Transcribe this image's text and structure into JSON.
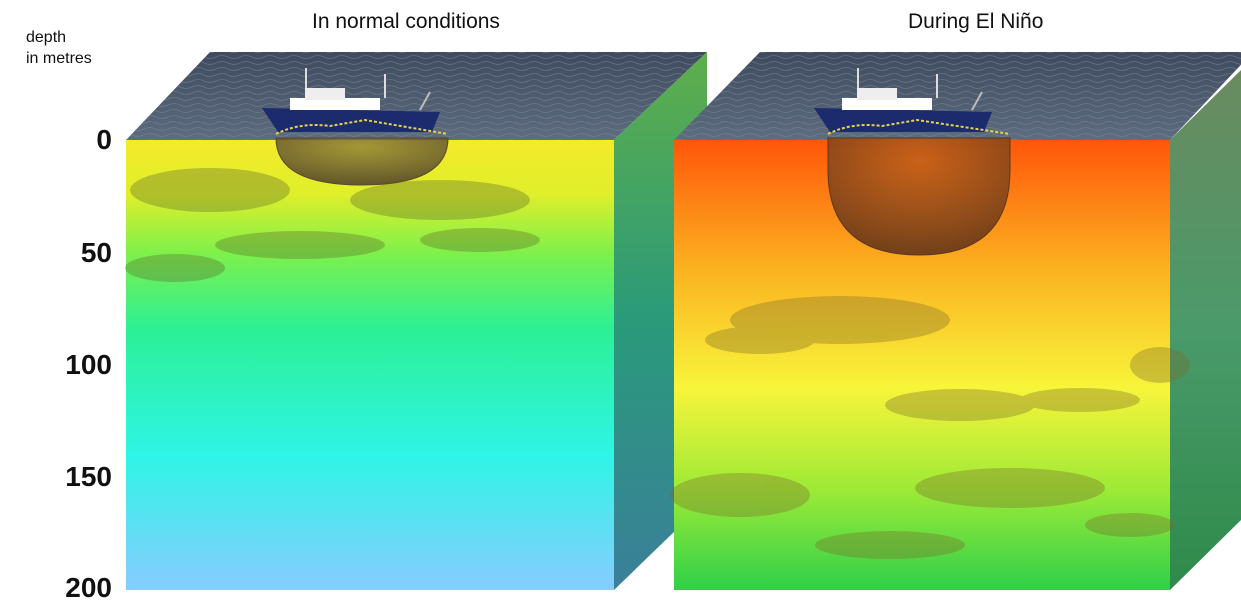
{
  "panels": {
    "left_title": "In normal conditions",
    "right_title": "During El Niño"
  },
  "axis": {
    "label_line1": "depth",
    "label_line2": "in metres",
    "ticks": [
      "0",
      "50",
      "100",
      "150",
      "200"
    ]
  },
  "colors": {
    "sea_surface": "#4a5a6e",
    "normal_top": "#f2e62a",
    "normal_mid": "#2ef0a0",
    "normal_bottom": "#86d0ff",
    "elnino_top": "#ff5a0a",
    "elnino_mid": "#f4f53a",
    "elnino_bottom": "#2ed24a",
    "net": "#6b4a2a",
    "boat_hull": "#1c2a6e"
  }
}
